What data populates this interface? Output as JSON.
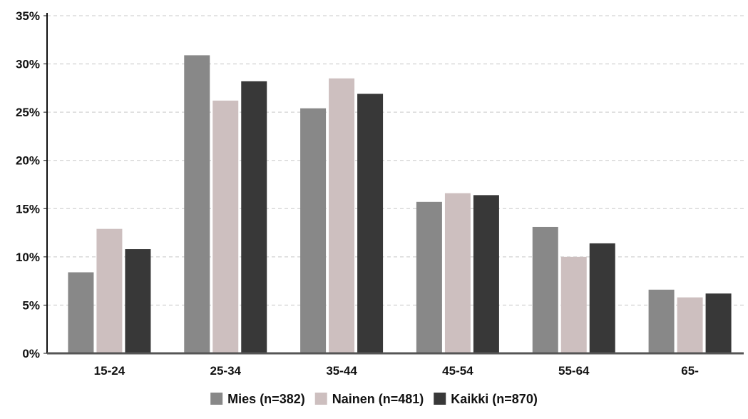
{
  "chart_data": {
    "type": "bar",
    "title": "",
    "xlabel": "",
    "ylabel": "",
    "categories": [
      "15-24",
      "25-34",
      "35-44",
      "45-54",
      "55-64",
      "65-"
    ],
    "series": [
      {
        "name": "Mies (n=382)",
        "color": "#888888",
        "values": [
          8.4,
          30.9,
          25.4,
          15.7,
          13.1,
          6.6
        ]
      },
      {
        "name": "Nainen (n=481)",
        "color": "#cdbfbf",
        "values": [
          12.9,
          26.2,
          28.5,
          16.6,
          10.0,
          5.8
        ]
      },
      {
        "name": "Kaikki (n=870)",
        "color": "#383838",
        "values": [
          10.8,
          28.2,
          26.9,
          16.4,
          11.4,
          6.2
        ]
      }
    ],
    "ylim": [
      0,
      35
    ],
    "yticks": [
      0,
      5,
      10,
      15,
      20,
      25,
      30,
      35
    ],
    "ytick_labels": [
      "0%",
      "5%",
      "10%",
      "15%",
      "20%",
      "25%",
      "30%",
      "35%"
    ],
    "grid": true,
    "legend_position": "bottom-center"
  }
}
